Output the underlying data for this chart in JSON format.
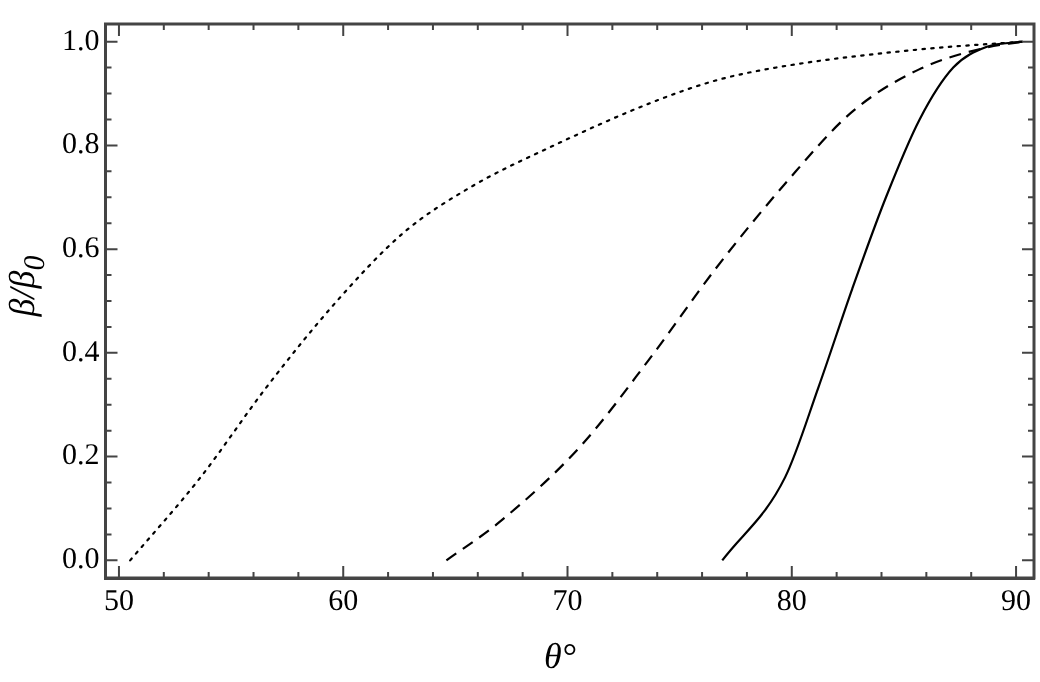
{
  "chart_data": {
    "type": "line",
    "xlabel": "θ°",
    "ylabel": "β/β$_{0}$",
    "xlim": [
      49.4,
      90.8
    ],
    "ylim": [
      -0.034,
      1.034
    ],
    "xticks": [
      50,
      {
        "value": 52,
        "label": null
      },
      {
        "value": 54,
        "label": null
      },
      {
        "value": 56,
        "label": null
      },
      {
        "value": 58,
        "label": null
      },
      60,
      {
        "value": 62,
        "label": null
      },
      {
        "value": 64,
        "label": null
      },
      {
        "value": 66,
        "label": null
      },
      {
        "value": 68,
        "label": null
      },
      70,
      {
        "value": 72,
        "label": null
      },
      {
        "value": 74,
        "label": null
      },
      {
        "value": 76,
        "label": null
      },
      {
        "value": 78,
        "label": null
      },
      80,
      {
        "value": 82,
        "label": null
      },
      {
        "value": 84,
        "label": null
      },
      {
        "value": 86,
        "label": null
      },
      {
        "value": 88,
        "label": null
      },
      90
    ],
    "yticks": [
      {
        "value": 0,
        "label": "0.0"
      },
      {
        "value": 0.05,
        "label": null
      },
      {
        "value": 0.1,
        "label": null
      },
      {
        "value": 0.15,
        "label": null
      },
      {
        "value": 0.2,
        "label": "0.2"
      },
      {
        "value": 0.25,
        "label": null
      },
      {
        "value": 0.3,
        "label": null
      },
      {
        "value": 0.35,
        "label": null
      },
      {
        "value": 0.4,
        "label": "0.4"
      },
      {
        "value": 0.45,
        "label": null
      },
      {
        "value": 0.5,
        "label": null
      },
      {
        "value": 0.55,
        "label": null
      },
      {
        "value": 0.6,
        "label": "0.6"
      },
      {
        "value": 0.65,
        "label": null
      },
      {
        "value": 0.7,
        "label": null
      },
      {
        "value": 0.75,
        "label": null
      },
      {
        "value": 0.8,
        "label": "0.8"
      },
      {
        "value": 0.85,
        "label": null
      },
      {
        "value": 0.9,
        "label": null
      },
      {
        "value": 0.95,
        "label": null
      },
      {
        "value": 1,
        "label": "1.0"
      }
    ],
    "grid": false,
    "legend": false,
    "marker": "none",
    "series": [
      {
        "color": "#000000",
        "line_style": "dotted",
        "x": [
          50.5,
          53.6,
          56.6,
          59.7,
          62.7,
          65.7,
          69.4,
          73.6,
          76.6,
          79.7,
          85.7,
          90.3
        ],
        "values": [
          0,
          0.158,
          0.335,
          0.499,
          0.632,
          0.72,
          0.8,
          0.88,
          0.925,
          0.953,
          0.985,
          1.0
        ]
      },
      {
        "color": "#000000",
        "line_style": "dashed",
        "x": [
          64.6,
          67.0,
          70.6,
          73.6,
          76.6,
          79.7,
          82.7,
          85.7,
          88.7,
          90.3
        ],
        "values": [
          0,
          0.075,
          0.221,
          0.385,
          0.562,
          0.726,
          0.865,
          0.947,
          0.989,
          1.0
        ]
      },
      {
        "color": "#000000",
        "line_style": "solid",
        "x": [
          76.9,
          79.7,
          81.2,
          82.7,
          84.2,
          85.7,
          87.2,
          88.7,
          90.3
        ],
        "values": [
          0,
          0.16,
          0.335,
          0.524,
          0.7,
          0.85,
          0.95,
          0.99,
          1.0
        ]
      }
    ]
  }
}
